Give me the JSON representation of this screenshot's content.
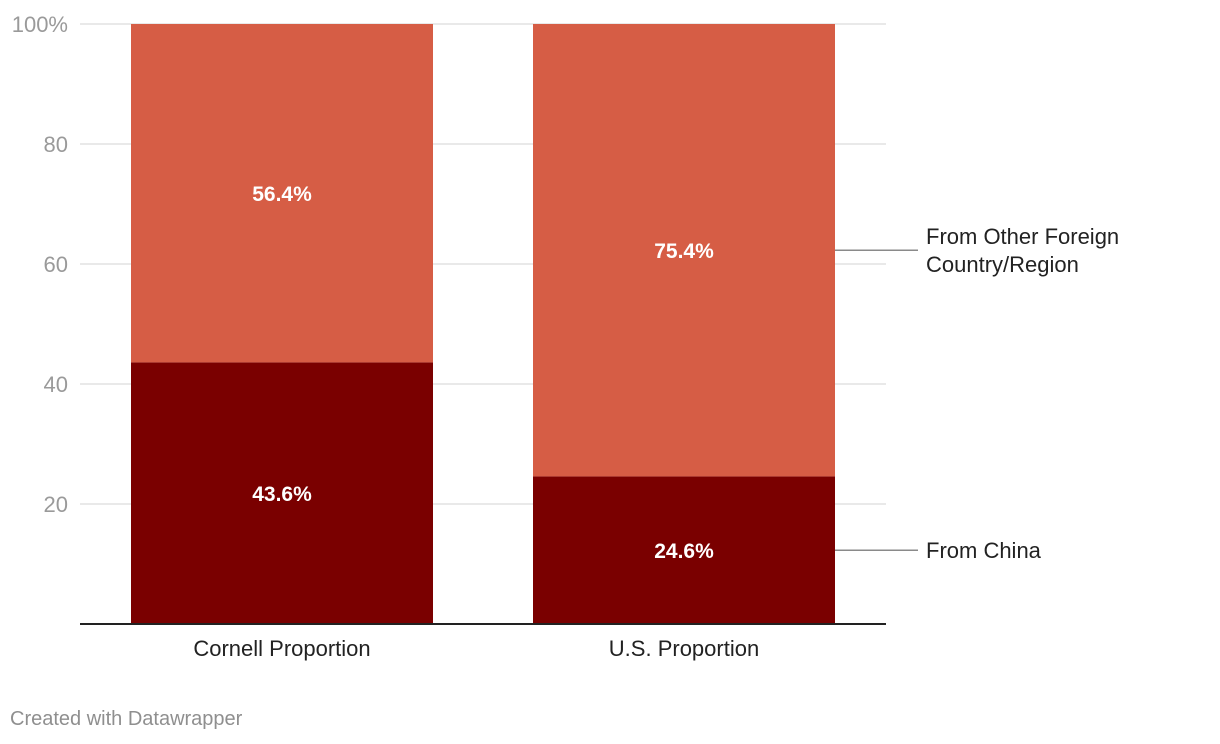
{
  "chart_data": {
    "type": "bar",
    "stacked": true,
    "categories": [
      "Cornell Proportion",
      "U.S. Proportion"
    ],
    "series": [
      {
        "name": "From China",
        "values": [
          43.6,
          24.6
        ],
        "labels": [
          "43.6%",
          "24.6%"
        ],
        "color": "#7a0000"
      },
      {
        "name": "From Other Foreign Country/Region",
        "values": [
          56.4,
          75.4
        ],
        "labels": [
          "56.4%",
          "75.4%"
        ],
        "color": "#d65d45"
      }
    ],
    "legend_lines": {
      "china": [
        "From China"
      ],
      "other": [
        "From Other Foreign",
        "Country/Region"
      ]
    },
    "yticks": [
      {
        "value": 100,
        "label": "100%"
      },
      {
        "value": 80,
        "label": "80"
      },
      {
        "value": 60,
        "label": "60"
      },
      {
        "value": 40,
        "label": "40"
      },
      {
        "value": 20,
        "label": "20"
      }
    ],
    "ylim": [
      0,
      100
    ],
    "grid": true,
    "legend_position": "right"
  },
  "footer": {
    "credit": "Created with Datawrapper"
  },
  "colors": {
    "grid": "#e2e2e2",
    "axis": "#222222",
    "tick_text": "#9a9a9a",
    "label_text": "#222222",
    "connector": "#8a8a8a"
  }
}
